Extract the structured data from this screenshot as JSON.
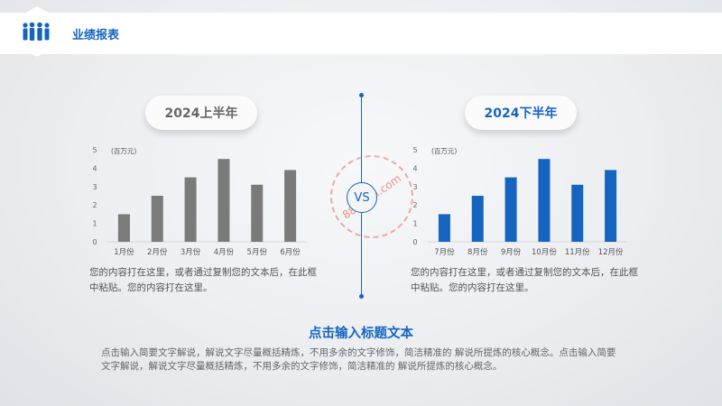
{
  "header": {
    "title": "业绩报表"
  },
  "left_panel": {
    "pill": "2024上半年",
    "unit": "(百万元)",
    "description": "您的内容打在这里，或者通过复制您的文本后，在此框中粘贴。您的内容打在这里。"
  },
  "right_panel": {
    "pill": "2024下半年",
    "unit": "(百万元)",
    "description": "您的内容打在这里，或者通过复制您的文本后，在此框中粘贴。您的内容打在这里。"
  },
  "vs_label": "VS",
  "watermark_text": "88sucai.com",
  "main": {
    "title": "点击输入标题文本",
    "body": "点击输入简要文字解说，解说文字尽量概括精炼，不用多余的文字修饰，简洁精准的 解说所提炼的核心概念。点击输入简要文字解说，解说文字尽量概括精炼，不用多余的文字修饰，简洁精准的 解说所提炼的核心概念。"
  },
  "colors": {
    "accent": "#1565c0",
    "gray_bar": "#7a7a7a"
  },
  "chart_data": [
    {
      "type": "bar",
      "categories": [
        "1月份",
        "2月份",
        "3月份",
        "4月份",
        "5月份",
        "6月份"
      ],
      "values": [
        1.5,
        2.5,
        3.5,
        4.5,
        3.1,
        3.9
      ],
      "ylabel": "(百万元)",
      "ylim": [
        0,
        5
      ],
      "yticks": [
        0,
        1,
        2,
        3,
        4,
        5
      ],
      "color": "#7a7a7a",
      "grid": false
    },
    {
      "type": "bar",
      "categories": [
        "7月份",
        "8月份",
        "9月份",
        "10月份",
        "11月份",
        "12月份"
      ],
      "values": [
        1.5,
        2.5,
        3.5,
        4.5,
        3.1,
        3.9
      ],
      "ylabel": "(百万元)",
      "ylim": [
        0,
        5
      ],
      "yticks": [
        0,
        1,
        2,
        3,
        4,
        5
      ],
      "color": "#1565c0",
      "grid": false
    }
  ]
}
